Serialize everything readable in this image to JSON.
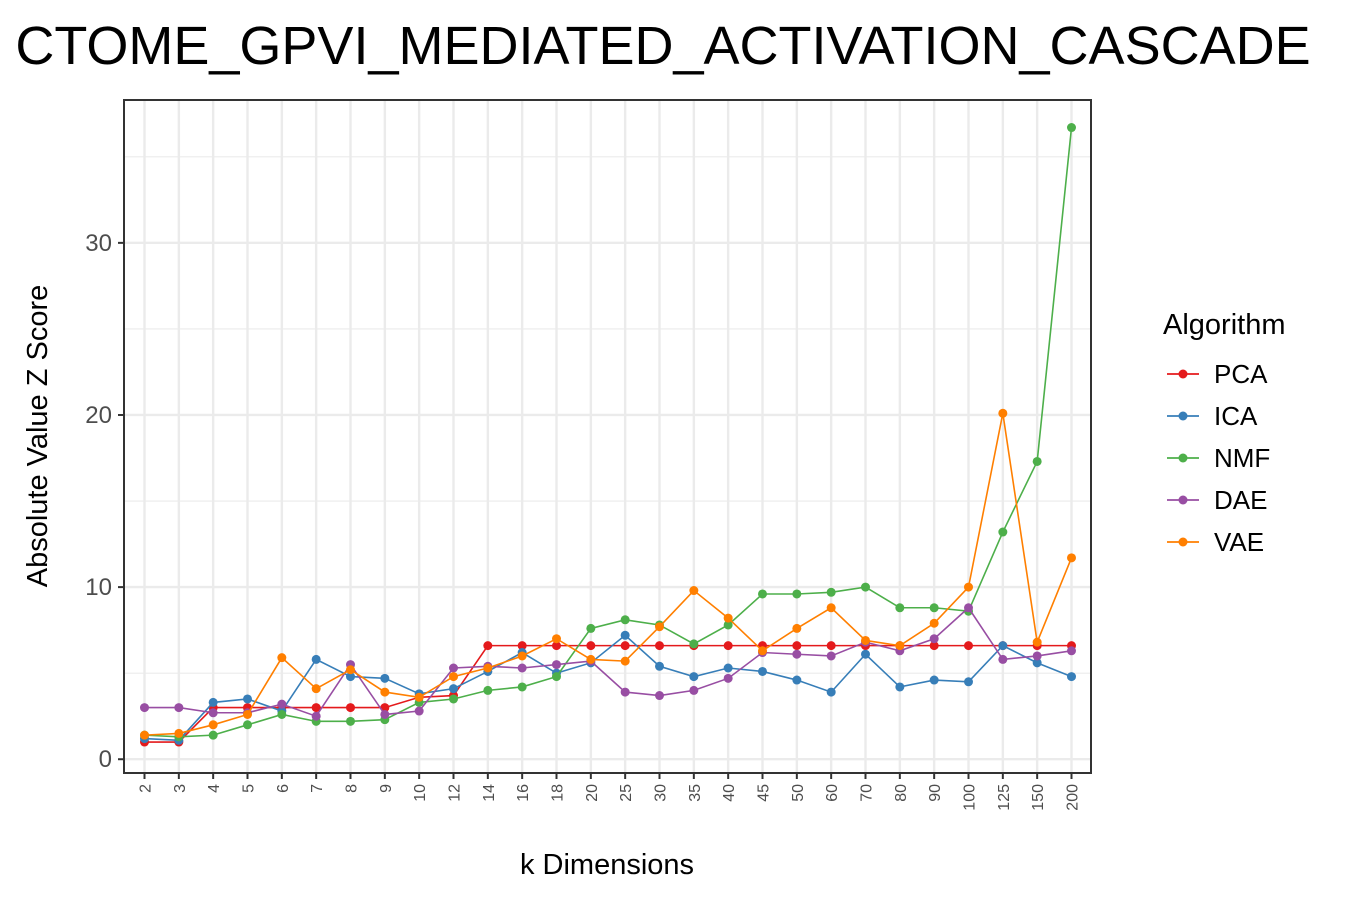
{
  "chart_data": {
    "type": "line",
    "title": "CTOME_GPVI_MEDIATED_ACTIVATION_CASCADE",
    "xlabel": "k Dimensions",
    "ylabel": "Absolute Value Z Score",
    "categories": [
      "2",
      "3",
      "4",
      "5",
      "6",
      "7",
      "8",
      "9",
      "10",
      "12",
      "14",
      "16",
      "18",
      "20",
      "25",
      "30",
      "35",
      "40",
      "45",
      "50",
      "60",
      "70",
      "80",
      "90",
      "100",
      "125",
      "150",
      "200"
    ],
    "yticks": [
      0,
      10,
      20,
      30
    ],
    "ylim": [
      -0.8,
      38.3
    ],
    "grid": true,
    "legend": {
      "title": "Algorithm",
      "position": "right"
    },
    "series": [
      {
        "name": "PCA",
        "color": "#e41a1c",
        "values": [
          1.0,
          1.0,
          3.0,
          3.0,
          3.0,
          3.0,
          3.0,
          3.0,
          3.6,
          3.7,
          6.6,
          6.6,
          6.6,
          6.6,
          6.6,
          6.6,
          6.6,
          6.6,
          6.6,
          6.6,
          6.6,
          6.6,
          6.6,
          6.6,
          6.6,
          6.6,
          6.6,
          6.6
        ]
      },
      {
        "name": "ICA",
        "color": "#377eb8",
        "values": [
          1.2,
          1.1,
          3.3,
          3.5,
          2.8,
          5.8,
          4.8,
          4.7,
          3.8,
          4.1,
          5.1,
          6.2,
          5.0,
          5.6,
          7.2,
          5.4,
          4.8,
          5.3,
          5.1,
          4.6,
          3.9,
          6.1,
          4.2,
          4.6,
          4.5,
          6.6,
          5.6,
          4.8
        ]
      },
      {
        "name": "NMF",
        "color": "#4daf4a",
        "values": [
          1.4,
          1.3,
          1.4,
          2.0,
          2.6,
          2.2,
          2.2,
          2.3,
          3.3,
          3.5,
          4.0,
          4.2,
          4.8,
          7.6,
          8.1,
          7.8,
          6.7,
          7.8,
          9.6,
          9.6,
          9.7,
          10.0,
          8.8,
          8.8,
          8.6,
          13.2,
          17.3,
          36.7
        ]
      },
      {
        "name": "DAE",
        "color": "#984ea3",
        "values": [
          3.0,
          3.0,
          2.7,
          2.7,
          3.2,
          2.5,
          5.5,
          2.6,
          2.8,
          5.3,
          5.4,
          5.3,
          5.5,
          5.7,
          3.9,
          3.7,
          4.0,
          4.7,
          6.2,
          6.1,
          6.0,
          6.8,
          6.3,
          7.0,
          8.8,
          5.8,
          6.0,
          6.3
        ]
      },
      {
        "name": "VAE",
        "color": "#ff7f00",
        "values": [
          1.4,
          1.5,
          2.0,
          2.6,
          5.9,
          4.1,
          5.2,
          3.9,
          3.6,
          4.8,
          5.3,
          6.0,
          7.0,
          5.8,
          5.7,
          7.7,
          9.8,
          8.2,
          6.3,
          7.6,
          8.8,
          6.9,
          6.6,
          7.9,
          10.0,
          20.1,
          6.8,
          11.7
        ]
      }
    ]
  }
}
